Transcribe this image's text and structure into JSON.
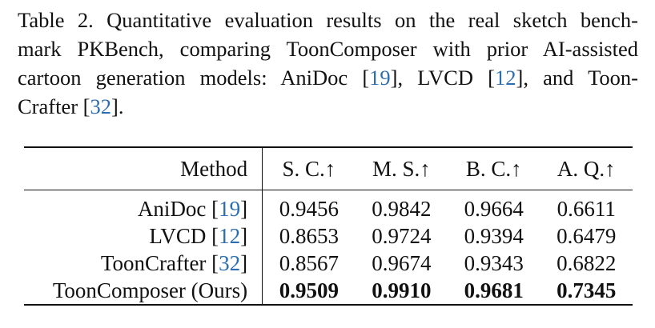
{
  "caption": {
    "line1": "Table 2. Quantitative evaluation results on the real sketch bench-",
    "line2": "mark PKBench, comparing ToonComposer with prior AI-assisted",
    "line3_pre": "cartoon generation models: AniDoc [",
    "line3_cite1": "19",
    "line3_mid1": "], LVCD [",
    "line3_cite2": "12",
    "line3_post": "], and Toon-",
    "line4_pre": "Crafter [",
    "line4_cite": "32",
    "line4_post": "]."
  },
  "table": {
    "headers": [
      "Method",
      "S. C.↑",
      "M. S.↑",
      "B. C.↑",
      "A. Q.↑"
    ],
    "rows": [
      {
        "method": "AniDoc [",
        "cite": "19",
        "close": "]",
        "values": [
          "0.9456",
          "0.9842",
          "0.9664",
          "0.6611"
        ]
      },
      {
        "method": "LVCD [",
        "cite": "12",
        "close": "]",
        "values": [
          "0.8653",
          "0.9724",
          "0.9394",
          "0.6479"
        ]
      },
      {
        "method": "ToonCrafter [",
        "cite": "32",
        "close": "]",
        "values": [
          "0.8567",
          "0.9674",
          "0.9343",
          "0.6822"
        ]
      },
      {
        "method": "ToonComposer (Ours)",
        "cite": "",
        "close": "",
        "values": [
          "0.9509",
          "0.9910",
          "0.9681",
          "0.7345"
        ]
      }
    ]
  },
  "colors": {
    "citation": "#2a6db0",
    "text": "#111111"
  }
}
